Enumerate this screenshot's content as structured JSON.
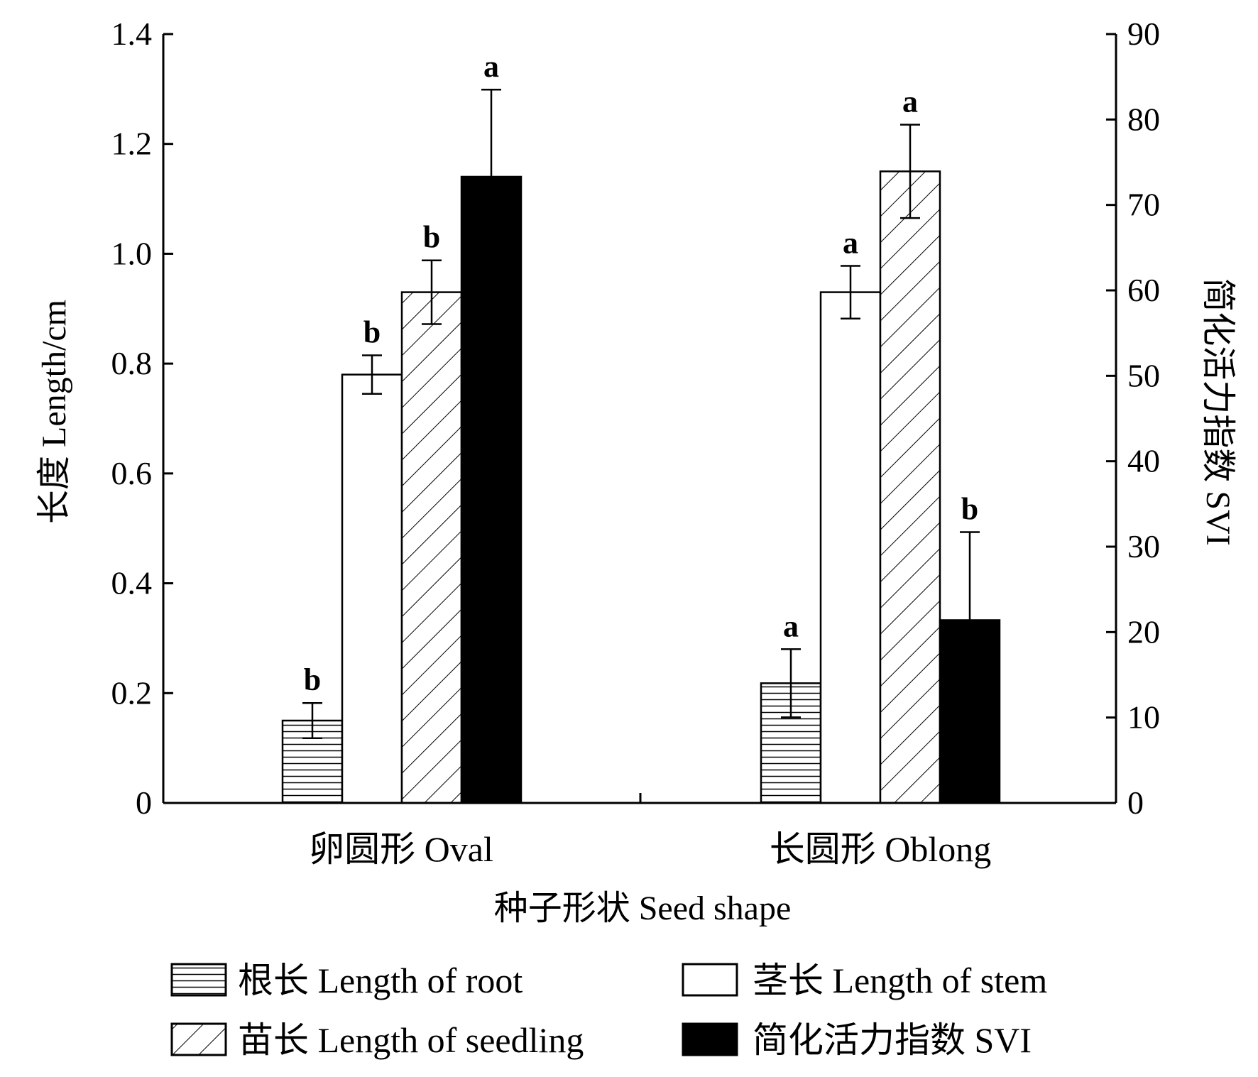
{
  "chart_data": {
    "type": "bar",
    "categories": [
      "卵圆形  Oval",
      "长圆形  Oblong"
    ],
    "xlabel": "种子形状  Seed shape",
    "ylabel": "长度  Length/cm",
    "y2label": "简化活力指数  SVI",
    "ylim": [
      0,
      1.4
    ],
    "y2lim": [
      0,
      90
    ],
    "yticks": [
      "0",
      "0.2",
      "0.4",
      "0.6",
      "0.8",
      "1.0",
      "1.2",
      "1.4"
    ],
    "y2ticks": [
      "0",
      "10",
      "20",
      "30",
      "40",
      "50",
      "60",
      "70",
      "80",
      "90"
    ],
    "grid": false,
    "legend_position": "bottom",
    "series": [
      {
        "name": "根长  Length of root",
        "axis": "left",
        "pattern": "horizontal-lines",
        "values": [
          0.15,
          0.218
        ],
        "errors": [
          0.032,
          0.062
        ],
        "letters": [
          "b",
          "a"
        ]
      },
      {
        "name": "茎长  Length of stem",
        "axis": "left",
        "pattern": "white",
        "values": [
          0.78,
          0.93
        ],
        "errors": [
          0.035,
          0.048
        ],
        "letters": [
          "b",
          "a"
        ]
      },
      {
        "name": "苗长  Length of seedling",
        "axis": "left",
        "pattern": "diagonal-lines",
        "values": [
          0.93,
          1.15
        ],
        "errors": [
          0.058,
          0.085
        ],
        "letters": [
          "b",
          "a"
        ]
      },
      {
        "name": "简化活力指数  SVI",
        "axis": "right",
        "pattern": "solid-black",
        "values": [
          73.3,
          21.4
        ],
        "errors": [
          10.2,
          10.3
        ],
        "letters": [
          "a",
          "b"
        ]
      }
    ]
  }
}
